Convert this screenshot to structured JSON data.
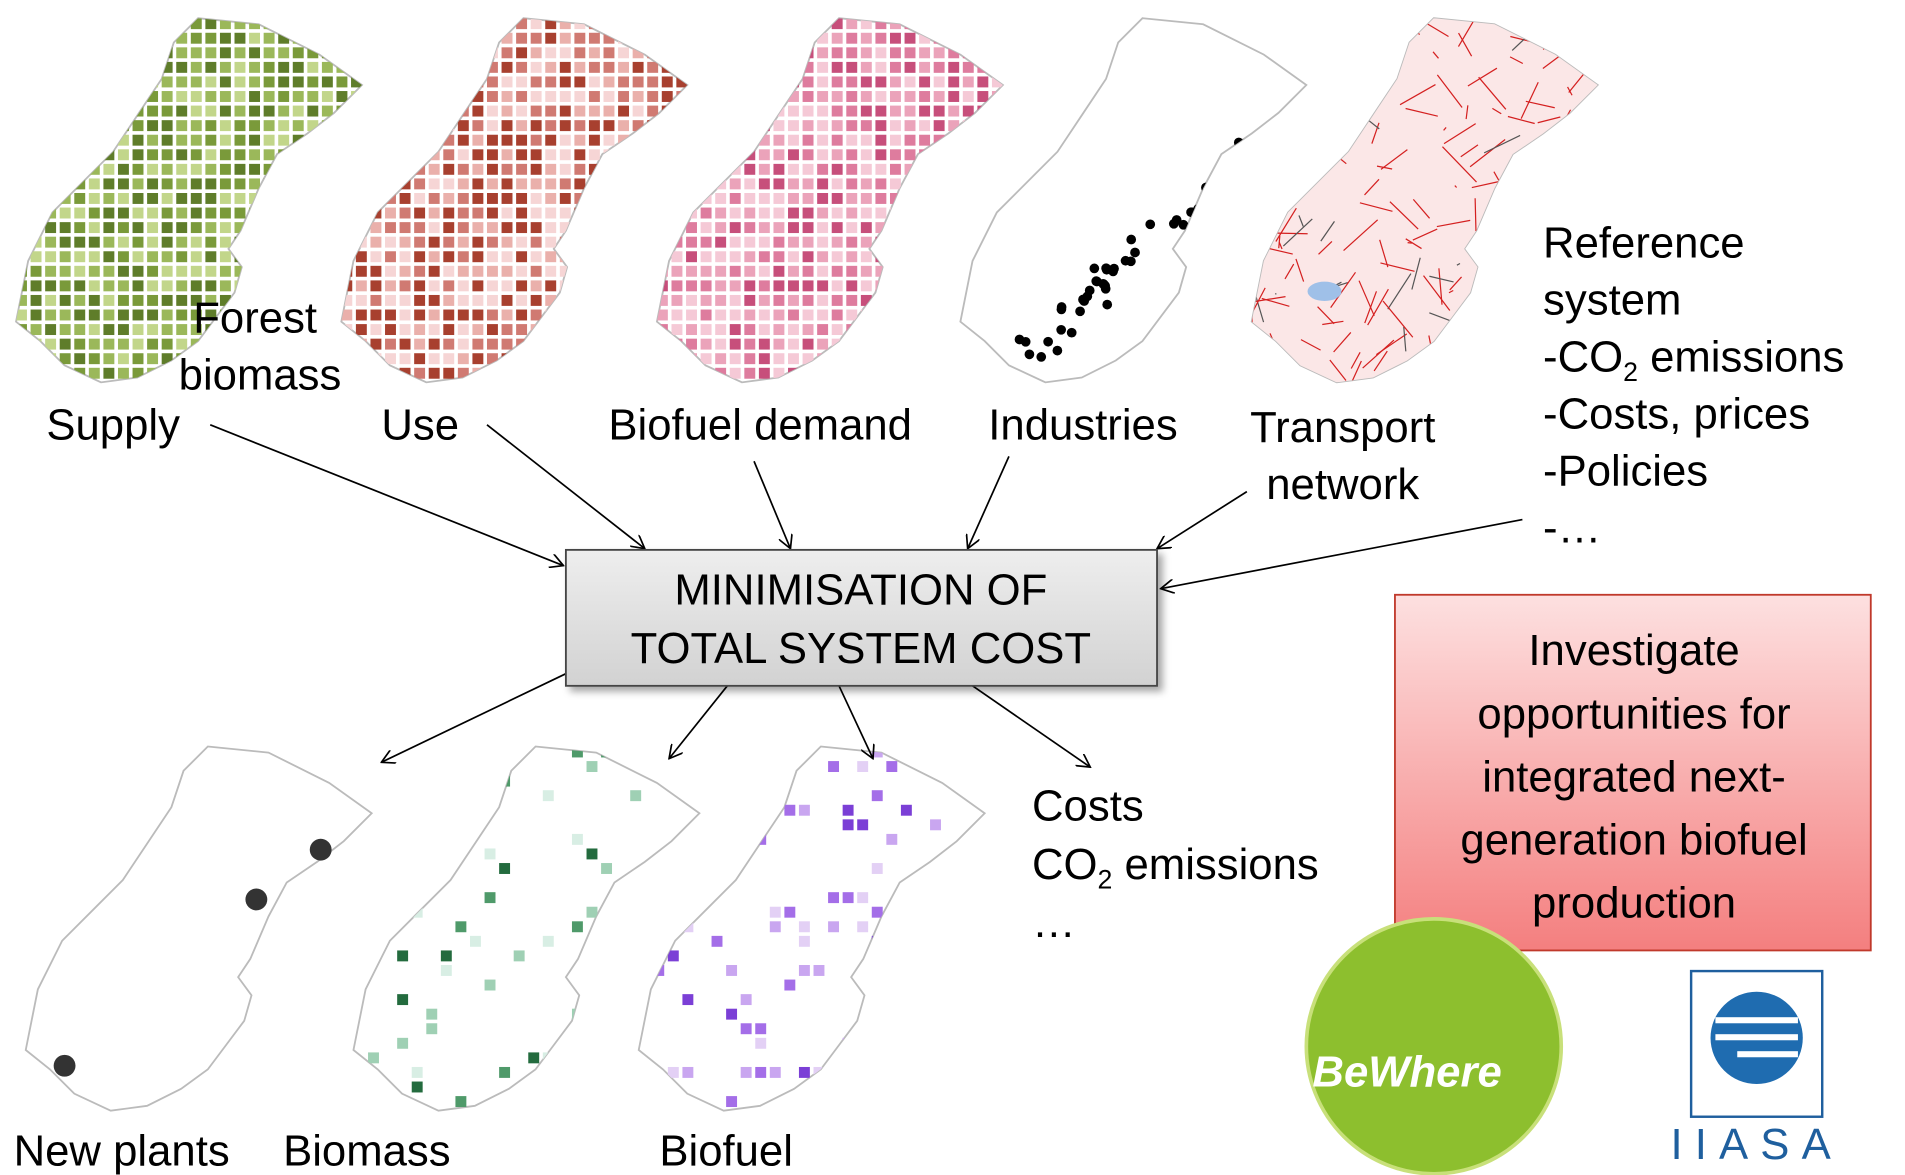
{
  "inputs": [
    "Supply",
    "Use",
    "Biofuel demand",
    "Industries",
    {
      "lines": [
        "Transport",
        "network"
      ]
    }
  ],
  "input_group_label": {
    "lines": [
      "Forest",
      "biomass"
    ]
  },
  "reference": {
    "lines": [
      "Reference",
      "system"
    ],
    "items": [
      {
        "dash": "-",
        "pre": "CO",
        "sub": "2",
        "post": " emissions"
      },
      {
        "dash": "-",
        "text": "Costs, prices"
      },
      {
        "dash": "-",
        "text": "Policies"
      },
      {
        "dash": "-",
        "text": "…"
      }
    ]
  },
  "center": {
    "lines": [
      "MINIMISATION OF",
      "TOTAL SYSTEM COST"
    ]
  },
  "outputs": [
    "New plants",
    "Biomass",
    "Biofuel"
  ],
  "output_list": [
    {
      "text": "Costs"
    },
    {
      "pre": "CO",
      "sub": "2",
      "post": " emissions"
    },
    {
      "text": "…"
    }
  ],
  "callout": {
    "lines": [
      "Investigate",
      "opportunities for",
      "integrated next-",
      "generation biofuel",
      "production"
    ]
  },
  "logos": {
    "bewhere": "BeWhere",
    "iiasa": "IIASA"
  }
}
